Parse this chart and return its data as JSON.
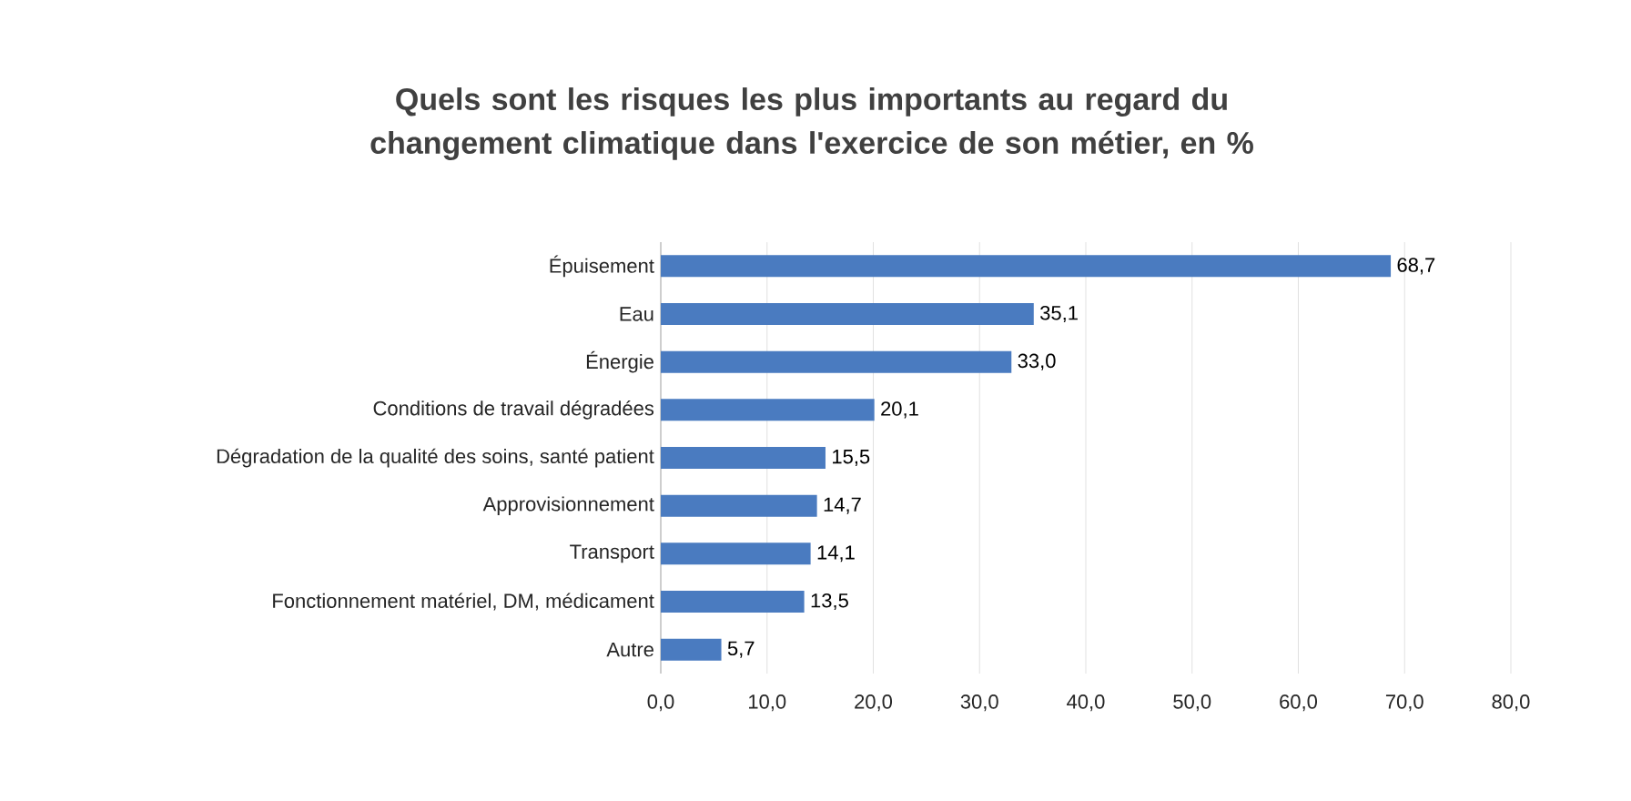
{
  "chart_data": {
    "type": "bar",
    "orientation": "horizontal",
    "title": "Quels sont les risques les plus importants au regard du changement climatique dans l'exercice de son métier, en %",
    "categories": [
      "Épuisement",
      "Eau",
      "Énergie",
      "Conditions de travail dégradées",
      "Dégradation de la qualité des soins, santé patient",
      "Approvisionnement",
      "Transport",
      "Fonctionnement matériel, DM, médicament",
      "Autre"
    ],
    "values": [
      68.7,
      35.1,
      33.0,
      20.1,
      15.5,
      14.7,
      14.1,
      13.5,
      5.7
    ],
    "value_labels": [
      "68,7",
      "35,1",
      "33,0",
      "20,1",
      "15,5",
      "14,7",
      "14,1",
      "13,5",
      "5,7"
    ],
    "color": "#4a7bc0",
    "xlim": [
      0,
      80
    ],
    "xticks": [
      {
        "value": 0,
        "label": "0,0"
      },
      {
        "value": 10,
        "label": "10,0"
      },
      {
        "value": 20,
        "label": "20,0"
      },
      {
        "value": 30,
        "label": "30,0"
      },
      {
        "value": 40,
        "label": "40,0"
      },
      {
        "value": 50,
        "label": "50,0"
      },
      {
        "value": 60,
        "label": "60,0"
      },
      {
        "value": 70,
        "label": "70,0"
      },
      {
        "value": 80,
        "label": "80,0"
      }
    ],
    "grid": "x"
  }
}
